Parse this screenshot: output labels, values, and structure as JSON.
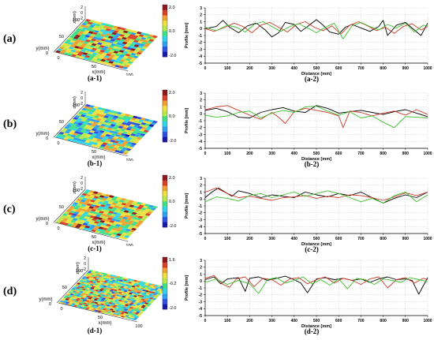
{
  "rows": [
    {
      "label": "(a)",
      "surface": {
        "label": "(a-1)",
        "z_axis": "z(mm)",
        "y_axis": "y(mm)",
        "x_axis": "x(mm)",
        "y_ticks": [
          "100",
          "50",
          "0"
        ],
        "x_ticks": [
          "0",
          "50",
          "100"
        ],
        "z_ticks": [
          "-2",
          "0",
          "2"
        ],
        "colorbar": {
          "max": "2.0",
          "mid": "0.0",
          "min": "-2.0"
        }
      },
      "chart_label": "(a-2)"
    },
    {
      "label": "(b)",
      "surface": {
        "label": "(b-1)",
        "z_axis": "z(mm)",
        "y_axis": "y(mm)",
        "x_axis": "x(mm)",
        "y_ticks": [
          "100",
          "50",
          "0"
        ],
        "x_ticks": [
          "0",
          "50",
          "100"
        ],
        "z_ticks": [
          "-2",
          "0",
          "2"
        ],
        "colorbar": {
          "max": "2.0",
          "mid": "0.0",
          "min": "-2.0"
        }
      },
      "chart_label": "(b-2)"
    },
    {
      "label": "(c)",
      "surface": {
        "label": "(c-1)",
        "z_axis": "z(mm)",
        "y_axis": "y(mm)",
        "x_axis": "x(mm)",
        "y_ticks": [
          "100",
          "50",
          "0"
        ],
        "x_ticks": [
          "0",
          "50",
          "100"
        ],
        "z_ticks": [
          "-2",
          "0",
          "2"
        ],
        "colorbar": {
          "max": "2.0",
          "mid": "0.0",
          "min": "-2.0"
        }
      },
      "chart_label": "(c-2)"
    },
    {
      "label": "(d)",
      "surface": {
        "label": "(d-1)",
        "z_axis": "z(mm)",
        "y_axis": "y(mm)",
        "x_axis": "x(mm)",
        "y_ticks": [
          "100",
          "50",
          "0"
        ],
        "x_ticks": [
          "0",
          "50",
          "100"
        ],
        "z_ticks": [
          "-2",
          "0",
          "2"
        ],
        "colorbar": {
          "max": "1.6",
          "mid": "-0.2",
          "min": "-2.0"
        }
      },
      "chart_label": "(d-2)"
    }
  ],
  "chart_data": [
    {
      "type": "line",
      "xlabel": "Distance [mm]",
      "ylabel": "Profile [mm]",
      "xlim": [
        0,
        1000
      ],
      "ylim": [
        -5,
        3
      ],
      "x_ticks": [
        0,
        100,
        200,
        300,
        400,
        500,
        600,
        700,
        800,
        900,
        1000
      ],
      "y_ticks": [
        3,
        2,
        1,
        0,
        -1,
        -2,
        -3,
        -4,
        -5
      ],
      "grid": true,
      "series": [
        {
          "color": "#000000",
          "x": [
            0,
            50,
            80,
            110,
            150,
            190,
            230,
            270,
            300,
            330,
            360,
            400,
            430,
            460,
            500,
            530,
            560,
            600,
            630,
            660,
            700,
            740,
            780,
            800,
            820,
            860,
            900,
            940,
            970,
            1000
          ],
          "values": [
            0,
            0.3,
            1.2,
            0.2,
            -0.6,
            0.4,
            0.8,
            -0.2,
            -1.2,
            -0.6,
            0.9,
            0.6,
            -0.4,
            0.3,
            1.3,
            0.5,
            -0.5,
            -0.8,
            0.2,
            0.6,
            0.1,
            -0.4,
            0.3,
            1.2,
            -1.0,
            0.5,
            0.9,
            -0.2,
            -1.0,
            0.8
          ]
        },
        {
          "color": "#cc3b2a",
          "x": [
            0,
            40,
            90,
            130,
            170,
            210,
            250,
            290,
            330,
            370,
            410,
            450,
            490,
            530,
            570,
            610,
            650,
            690,
            730,
            770,
            810,
            850,
            890,
            930,
            970,
            1000
          ],
          "values": [
            0,
            -0.4,
            0.2,
            0.8,
            0.3,
            -0.6,
            0.5,
            0.9,
            0.2,
            -0.5,
            0.6,
            1.0,
            0.2,
            -0.3,
            0.4,
            -0.8,
            0.5,
            1.0,
            0.4,
            -0.3,
            0.2,
            -0.7,
            0.3,
            0.7,
            -0.2,
            0.3
          ]
        },
        {
          "color": "#3fbf2f",
          "x": [
            0,
            50,
            100,
            140,
            180,
            220,
            260,
            300,
            340,
            380,
            420,
            460,
            500,
            540,
            580,
            620,
            660,
            700,
            740,
            780,
            820,
            860,
            900,
            940,
            980,
            1000
          ],
          "values": [
            0.2,
            -0.3,
            0.5,
            0.2,
            -0.5,
            0.6,
            1.0,
            0.3,
            -0.4,
            0.3,
            0.7,
            0.1,
            -0.6,
            0.2,
            0.8,
            -1.5,
            0.4,
            0.9,
            0.3,
            -0.2,
            0.6,
            0.1,
            0.8,
            -0.5,
            0.5,
            0.4
          ]
        }
      ]
    },
    {
      "type": "line",
      "xlabel": "Distance [mm]",
      "ylabel": "Profile [mm]",
      "xlim": [
        0,
        1000
      ],
      "ylim": [
        -5,
        3
      ],
      "x_ticks": [
        0,
        100,
        200,
        300,
        400,
        500,
        600,
        700,
        800,
        900,
        1000
      ],
      "y_ticks": [
        3,
        2,
        1,
        0,
        -1,
        -2,
        -3,
        -4,
        -5
      ],
      "grid": true,
      "series": [
        {
          "color": "#000000",
          "x": [
            0,
            50,
            100,
            150,
            200,
            250,
            300,
            350,
            400,
            450,
            500,
            550,
            600,
            650,
            700,
            750,
            800,
            850,
            900,
            950,
            1000
          ],
          "values": [
            0.5,
            0.8,
            0.3,
            -0.5,
            -0.6,
            0.2,
            0.6,
            0.9,
            0.4,
            0.2,
            1.2,
            0.8,
            0.1,
            0.3,
            0.5,
            0.2,
            -0.1,
            0.3,
            0.6,
            0.1,
            -0.4
          ]
        },
        {
          "color": "#cc3b2a",
          "x": [
            0,
            50,
            100,
            150,
            200,
            250,
            300,
            330,
            360,
            400,
            450,
            500,
            550,
            600,
            620,
            650,
            700,
            750,
            800,
            850,
            900,
            950,
            1000
          ],
          "values": [
            0.6,
            1.0,
            1.2,
            0.5,
            -0.2,
            -0.8,
            0.2,
            -0.5,
            -1.4,
            0.3,
            0.8,
            0.5,
            0.2,
            -0.3,
            -2.0,
            0.4,
            0.2,
            -0.3,
            0.1,
            0.4,
            -0.2,
            0.6,
            -0.1
          ]
        },
        {
          "color": "#3fbf2f",
          "x": [
            0,
            50,
            100,
            150,
            200,
            250,
            300,
            350,
            400,
            450,
            500,
            550,
            600,
            650,
            700,
            750,
            800,
            850,
            900,
            950,
            1000
          ],
          "values": [
            -0.2,
            -0.5,
            -0.3,
            0.2,
            0.4,
            -0.6,
            0.1,
            0.5,
            0.2,
            1.0,
            1.1,
            0.4,
            -0.2,
            0.3,
            -0.6,
            -0.3,
            -1.2,
            -2.0,
            -0.4,
            -0.5,
            -0.6
          ]
        }
      ]
    },
    {
      "type": "line",
      "xlabel": "Distance [mm]",
      "ylabel": "Profile [mm]",
      "xlim": [
        0,
        1000
      ],
      "ylim": [
        -5,
        3
      ],
      "x_ticks": [
        0,
        100,
        200,
        300,
        400,
        500,
        600,
        700,
        800,
        900,
        1000
      ],
      "y_ticks": [
        3,
        2,
        1,
        0,
        -1,
        -2,
        -3,
        -4,
        -5
      ],
      "grid": true,
      "series": [
        {
          "color": "#000000",
          "x": [
            0,
            30,
            60,
            90,
            120,
            150,
            200,
            250,
            300,
            350,
            400,
            450,
            500,
            550,
            600,
            650,
            700,
            750,
            800,
            850,
            900,
            950,
            1000
          ],
          "values": [
            0.2,
            1.0,
            1.6,
            1.0,
            0.4,
            1.2,
            0.8,
            0.2,
            0.6,
            0.4,
            0.2,
            1.0,
            0.6,
            0.3,
            0.8,
            0.5,
            1.0,
            0.2,
            -0.6,
            0.1,
            0.6,
            0.2,
            1.0
          ]
        },
        {
          "color": "#cc3b2a",
          "x": [
            0,
            50,
            100,
            150,
            200,
            250,
            300,
            350,
            400,
            450,
            500,
            550,
            600,
            650,
            700,
            750,
            800,
            850,
            900,
            950,
            1000
          ],
          "values": [
            1.0,
            1.6,
            0.8,
            0.2,
            0.4,
            0.1,
            -0.2,
            0.2,
            0.3,
            0.5,
            0.1,
            0.4,
            0.2,
            0.6,
            0.5,
            0.2,
            -0.2,
            0.3,
            0.9,
            0.5,
            1.0
          ]
        },
        {
          "color": "#3fbf2f",
          "x": [
            0,
            50,
            100,
            150,
            200,
            250,
            300,
            350,
            400,
            450,
            500,
            550,
            600,
            650,
            700,
            750,
            800,
            850,
            900,
            950,
            1000
          ],
          "values": [
            -0.4,
            0.3,
            0.1,
            -0.3,
            0.5,
            0.8,
            0.2,
            0.6,
            1.0,
            0.4,
            0.8,
            1.2,
            0.8,
            0.2,
            -0.4,
            0.1,
            -0.6,
            0.5,
            1.0,
            -0.4,
            0.6
          ]
        }
      ]
    },
    {
      "type": "line",
      "xlabel": "Distance [mm]",
      "ylabel": "Profile [mm]",
      "xlim": [
        0,
        1000
      ],
      "ylim": [
        -5,
        3
      ],
      "x_ticks": [
        0,
        100,
        200,
        300,
        400,
        500,
        600,
        700,
        800,
        900,
        1000
      ],
      "y_ticks": [
        3,
        2,
        1,
        0,
        -1,
        -2,
        -3,
        -4,
        -5
      ],
      "grid": true,
      "series": [
        {
          "color": "#000000",
          "x": [
            0,
            40,
            70,
            100,
            150,
            180,
            200,
            240,
            280,
            320,
            360,
            400,
            430,
            460,
            500,
            540,
            580,
            620,
            660,
            700,
            740,
            780,
            820,
            860,
            900,
            930,
            960,
            1000
          ],
          "values": [
            0.2,
            0.6,
            -0.4,
            0.3,
            0.5,
            -1.5,
            0.4,
            0.6,
            0.1,
            0.4,
            0.7,
            0.2,
            -0.3,
            -1.7,
            0.3,
            0.5,
            0.2,
            0.4,
            0.1,
            0.3,
            -0.2,
            0.3,
            0.6,
            0.2,
            0.3,
            0.1,
            -1.9,
            0.5
          ]
        },
        {
          "color": "#cc3b2a",
          "x": [
            0,
            40,
            80,
            110,
            140,
            180,
            220,
            260,
            300,
            340,
            380,
            420,
            460,
            500,
            540,
            580,
            620,
            660,
            700,
            740,
            780,
            820,
            860,
            900,
            940,
            980,
            1000
          ],
          "values": [
            0.4,
            0.8,
            -0.5,
            -0.9,
            0.3,
            0.6,
            -0.8,
            0.4,
            0.2,
            -0.6,
            0.3,
            0.5,
            -0.4,
            0.2,
            0.6,
            -0.3,
            0.4,
            0.1,
            -0.5,
            0.3,
            0.6,
            -1.0,
            0.2,
            0.5,
            -0.3,
            0.4,
            0.2
          ]
        },
        {
          "color": "#3fbf2f",
          "x": [
            0,
            50,
            100,
            150,
            200,
            240,
            280,
            320,
            360,
            400,
            440,
            480,
            520,
            560,
            600,
            640,
            680,
            720,
            760,
            800,
            840,
            880,
            920,
            960,
            1000
          ],
          "values": [
            -0.2,
            0.3,
            -0.5,
            0.1,
            -0.4,
            -1.8,
            0.2,
            0.5,
            -0.3,
            0.1,
            0.6,
            -0.4,
            0.2,
            -0.6,
            0.3,
            -1.1,
            0.4,
            0.2,
            -0.5,
            0.3,
            0.1,
            -0.2,
            0.5,
            0.2,
            -0.1
          ]
        }
      ]
    }
  ]
}
